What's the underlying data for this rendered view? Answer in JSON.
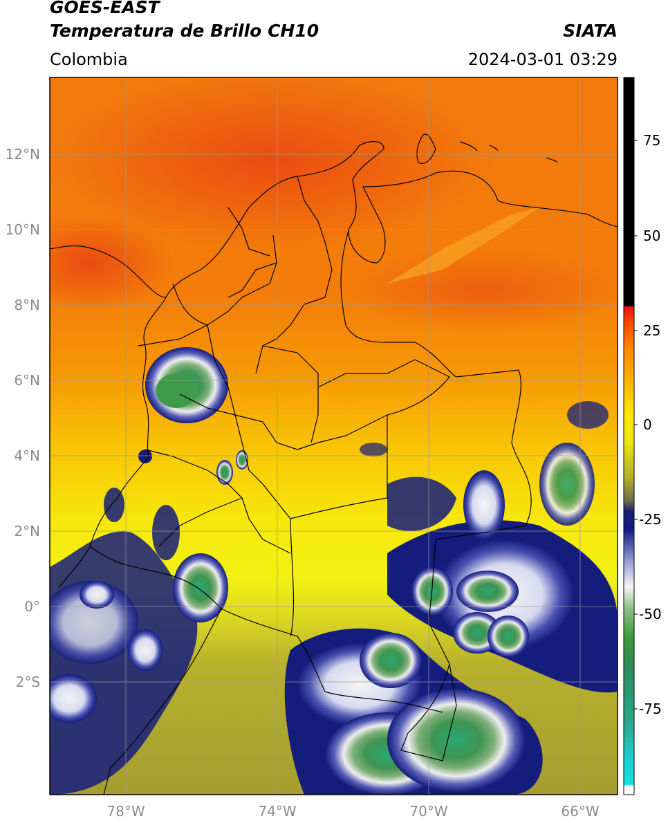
{
  "header": {
    "satellite": "GOES-EAST",
    "product": "Temperatura de Brillo CH10",
    "region": "Colombia",
    "source": "SIATA",
    "datetime": "2024-03-01 03:29"
  },
  "axes": {
    "lat_ticks": [
      "12°N",
      "10°N",
      "8°N",
      "6°N",
      "4°N",
      "2°N",
      "0°",
      "2°S"
    ],
    "lon_ticks": [
      "78°W",
      "74°W",
      "70°W",
      "66°W"
    ],
    "colorbar_ticks": [
      "75",
      "50",
      "25",
      "0",
      "-25",
      "-50",
      "-75"
    ]
  },
  "map_data": {
    "extent_lon": [
      -80,
      -65
    ],
    "extent_lat": [
      -5,
      14
    ],
    "colorbar_range": [
      -95,
      90
    ],
    "colors": {
      "warm_red": "#ec4a12",
      "orange": "#f79206",
      "yellow": "#f2ef10",
      "olive": "#b3ae2e",
      "navy": "#111a7c",
      "white": "#f2f2f2",
      "green": "#3f9a4a",
      "teal": "#2cae94",
      "cyan": "#18dede",
      "black": "#000000"
    }
  }
}
